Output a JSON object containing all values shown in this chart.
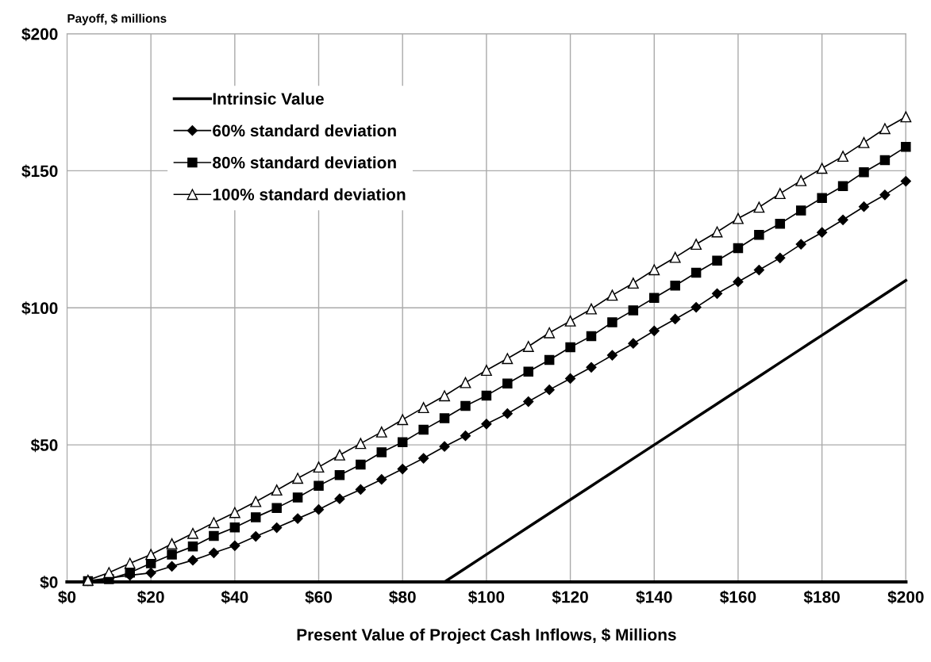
{
  "chart_data": {
    "type": "line",
    "ylabel": "Payoff, $ millions",
    "xlabel": "Present Value of Project Cash Inflows, $ Millions",
    "x": [
      5,
      10,
      15,
      20,
      25,
      30,
      35,
      40,
      45,
      50,
      55,
      60,
      65,
      70,
      75,
      80,
      85,
      90,
      95,
      100,
      105,
      110,
      115,
      120,
      125,
      130,
      135,
      140,
      145,
      150,
      155,
      160,
      165,
      170,
      175,
      180,
      185,
      190,
      195,
      200
    ],
    "series": [
      {
        "name": "Intrinsic Value",
        "color": "#000000",
        "marker": "none",
        "values": [
          0,
          0,
          0,
          0,
          0,
          0,
          0,
          0,
          0,
          0,
          0,
          0,
          0,
          0,
          0,
          0,
          0,
          0,
          5,
          10,
          15,
          20,
          25,
          30,
          35,
          40,
          45,
          50,
          55,
          60,
          65,
          70,
          75,
          80,
          85,
          90,
          95,
          100,
          105,
          110
        ]
      },
      {
        "name": "60% standard deviation",
        "color": "#000000",
        "marker": "diamond",
        "values": [
          0.4,
          1.4,
          2.4,
          3.3,
          5.7,
          7.9,
          10.6,
          13.2,
          16.6,
          19.8,
          23.1,
          26.4,
          30.3,
          33.7,
          37.4,
          41.2,
          45.1,
          49.4,
          53.3,
          57.6,
          61.4,
          65.8,
          70.1,
          74.2,
          78.3,
          82.7,
          87.0,
          91.6,
          95.9,
          100.2,
          105.2,
          109.5,
          113.8,
          118.2,
          123.2,
          127.5,
          132.1,
          136.9,
          141.2,
          146.2
        ]
      },
      {
        "name": "80% standard deviation",
        "color": "#000000",
        "marker": "square",
        "values": [
          0.3,
          1.0,
          3.4,
          6.8,
          10.0,
          12.9,
          16.8,
          19.9,
          23.6,
          27.0,
          30.8,
          35.1,
          39.0,
          42.8,
          47.3,
          51.0,
          55.5,
          59.7,
          64.2,
          68.0,
          72.4,
          76.7,
          81.0,
          85.6,
          89.7,
          94.7,
          99.1,
          103.6,
          108.1,
          112.8,
          117.2,
          121.8,
          126.6,
          130.7,
          135.5,
          140.1,
          144.4,
          149.5,
          153.9,
          158.7
        ]
      },
      {
        "name": "100% standard deviation",
        "color": "#000000",
        "marker": "triangle",
        "values": [
          0.6,
          3.4,
          6.8,
          10.0,
          13.9,
          17.7,
          21.6,
          25.3,
          29.3,
          33.5,
          37.8,
          41.9,
          46.3,
          50.5,
          54.7,
          59.2,
          63.6,
          67.9,
          72.7,
          77.2,
          81.5,
          85.9,
          90.9,
          95.2,
          99.6,
          104.6,
          109.0,
          113.9,
          118.4,
          123.2,
          127.7,
          132.6,
          136.7,
          141.7,
          146.4,
          150.9,
          155.3,
          160.3,
          165.4,
          169.7
        ]
      }
    ],
    "xlim": [
      0,
      200
    ],
    "xticks": [
      {
        "value": 0,
        "label": "$0"
      },
      {
        "value": 20,
        "label": "$20"
      },
      {
        "value": 40,
        "label": "$40"
      },
      {
        "value": 60,
        "label": "$60"
      },
      {
        "value": 80,
        "label": "$80"
      },
      {
        "value": 100,
        "label": "$100"
      },
      {
        "value": 120,
        "label": "$120"
      },
      {
        "value": 140,
        "label": "$140"
      },
      {
        "value": 160,
        "label": "$160"
      },
      {
        "value": 180,
        "label": "$180"
      },
      {
        "value": 200,
        "label": "$200"
      }
    ],
    "ylim": [
      0,
      200
    ],
    "yticks": [
      {
        "value": 0,
        "label": "$0"
      },
      {
        "value": 50,
        "label": "$50"
      },
      {
        "value": 100,
        "label": "$100"
      },
      {
        "value": 150,
        "label": "$150"
      },
      {
        "value": 200,
        "label": "$200"
      }
    ],
    "grid": true,
    "legend": "top left"
  }
}
